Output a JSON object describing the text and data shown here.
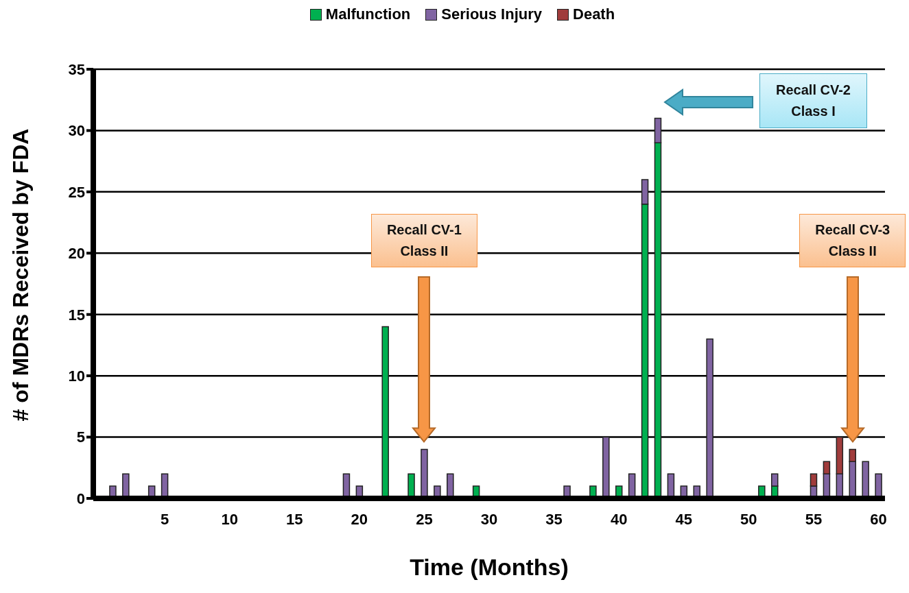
{
  "chart_data": {
    "type": "bar",
    "stacked": true,
    "xlabel": "Time (Months)",
    "ylabel": "# of MDRs Received by FDA",
    "categories": [
      null,
      null,
      null,
      null,
      null,
      "5",
      null,
      null,
      null,
      null,
      "10",
      null,
      null,
      null,
      null,
      "15",
      null,
      null,
      null,
      null,
      "20",
      null,
      null,
      null,
      null,
      "25",
      null,
      null,
      null,
      null,
      "30",
      null,
      null,
      null,
      null,
      "35",
      null,
      null,
      null,
      null,
      "40",
      null,
      null,
      null,
      null,
      "45",
      null,
      null,
      null,
      null,
      "50",
      null,
      null,
      null,
      null,
      "55",
      null,
      null,
      null,
      null,
      "60"
    ],
    "series": [
      {
        "name": "Malfunction",
        "color": "#00b050",
        "values": [
          0,
          0,
          0,
          0,
          0,
          0,
          0,
          0,
          0,
          0,
          0,
          0,
          0,
          0,
          0,
          0,
          0,
          0,
          0,
          0,
          0,
          0,
          14,
          0,
          2,
          0,
          0,
          0,
          0,
          1,
          0,
          0,
          0,
          0,
          0,
          0,
          0,
          0,
          1,
          0,
          1,
          0,
          24,
          29,
          0,
          0,
          0,
          0,
          0,
          0,
          0,
          1,
          1,
          0,
          0,
          0,
          0,
          0,
          0,
          0,
          0
        ]
      },
      {
        "name": "Serious Injury",
        "color": "#8064a2",
        "values": [
          0,
          1,
          2,
          0,
          1,
          2,
          0,
          0,
          0,
          0,
          0,
          0,
          0,
          0,
          0,
          0,
          0,
          0,
          0,
          2,
          1,
          0,
          0,
          0,
          0,
          4,
          1,
          2,
          0,
          0,
          0,
          0,
          0,
          0,
          0,
          0,
          1,
          0,
          0,
          5,
          0,
          2,
          2,
          2,
          2,
          1,
          1,
          13,
          0,
          0,
          0,
          0,
          1,
          0,
          0,
          1,
          2,
          2,
          3,
          3,
          2
        ]
      },
      {
        "name": "Death",
        "color": "#a03c3c",
        "values": [
          0,
          0,
          0,
          0,
          0,
          0,
          0,
          0,
          0,
          0,
          0,
          0,
          0,
          0,
          0,
          0,
          0,
          0,
          0,
          0,
          0,
          0,
          0,
          0,
          0,
          0,
          0,
          0,
          0,
          0,
          0,
          0,
          0,
          0,
          0,
          0,
          0,
          0,
          0,
          0,
          0,
          0,
          0,
          0,
          0,
          0,
          0,
          0,
          0,
          0,
          0,
          0,
          0,
          0,
          0,
          1,
          1,
          3,
          1,
          0,
          0
        ]
      }
    ],
    "ylim": [
      0,
      35
    ],
    "yticks": [
      0,
      5,
      10,
      15,
      20,
      25,
      30,
      35
    ],
    "grid": "y",
    "legend": "top",
    "annotations": [
      "Recall CV-1\nClass II",
      "Recall CV-2\nClass I",
      "Recall CV-3\nClass II"
    ]
  }
}
